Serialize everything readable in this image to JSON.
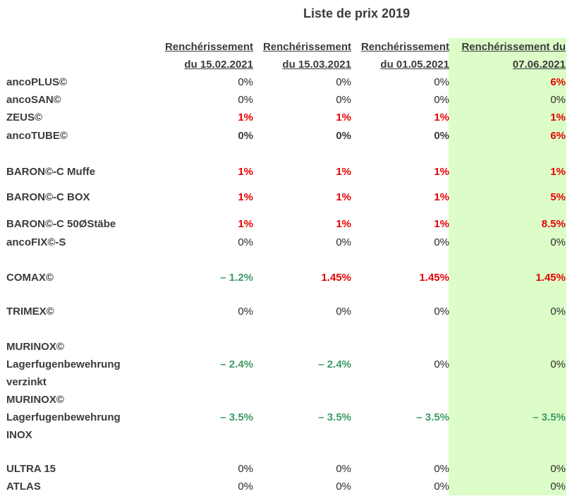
{
  "title": "Liste de prix 2019",
  "columns": [
    {
      "line1": "Renchérissement",
      "line2": "du 15.02.2021"
    },
    {
      "line1": "Renchérissement",
      "line2": "du 15.03.2021"
    },
    {
      "line1": "Renchérissement",
      "line2": "du 01.05.2021"
    },
    {
      "line1": "Renchérissement du",
      "line2": "07.06.2021"
    }
  ],
  "colors": {
    "highlight": "#dcfdc8",
    "increase": "#e60000",
    "decrease": "#3c9a66"
  },
  "rows": [
    {
      "label": [
        "ancoPLUS©"
      ],
      "values": [
        "0%",
        "0%",
        "0%",
        "6%"
      ],
      "styles": [
        "zero",
        "zero",
        "zero",
        "red"
      ]
    },
    {
      "label": [
        "ancoSAN©"
      ],
      "values": [
        "0%",
        "0%",
        "0%",
        "0%"
      ],
      "styles": [
        "zero",
        "zero",
        "zero",
        "zero"
      ]
    },
    {
      "label": [
        "ZEUS©"
      ],
      "values": [
        "1%",
        "1%",
        "1%",
        "1%"
      ],
      "styles": [
        "red",
        "red",
        "red",
        "red"
      ]
    },
    {
      "label": [
        "ancoTUBE©"
      ],
      "values": [
        "0%",
        "0%",
        "0%",
        "6%"
      ],
      "styles": [
        "zerob",
        "zerob",
        "zerob",
        "red"
      ]
    },
    {
      "label": [
        "BARON©-C Muffe"
      ],
      "values": [
        "1%",
        "1%",
        "1%",
        "1%"
      ],
      "styles": [
        "red",
        "red",
        "red",
        "red"
      ]
    },
    {
      "label": [
        "BARON©-C BOX"
      ],
      "values": [
        "1%",
        "1%",
        "1%",
        "5%"
      ],
      "styles": [
        "red",
        "red",
        "red",
        "red"
      ]
    },
    {
      "label": [
        "BARON©-C 50ØStäbe"
      ],
      "values": [
        "1%",
        "1%",
        "1%",
        "8.5%"
      ],
      "styles": [
        "red",
        "red",
        "red",
        "red"
      ]
    },
    {
      "label": [
        "ancoFIX©-S"
      ],
      "values": [
        "0%",
        "0%",
        "0%",
        "0%"
      ],
      "styles": [
        "zero",
        "zero",
        "zero",
        "zero"
      ]
    },
    {
      "label": [
        "COMAX©"
      ],
      "values": [
        "– 1.2%",
        "1.45%",
        "1.45%",
        "1.45%"
      ],
      "styles": [
        "green",
        "red",
        "red",
        "red"
      ]
    },
    {
      "label": [
        "TRIMEX©"
      ],
      "values": [
        "0%",
        "0%",
        "0%",
        "0%"
      ],
      "styles": [
        "zero",
        "zero",
        "zero",
        "zero"
      ]
    },
    {
      "label": [
        "MURINOX©",
        "Lagerfugenbewehrung",
        "verzinkt"
      ],
      "values": [
        "– 2.4%",
        "– 2.4%",
        "0%",
        "0%"
      ],
      "styles": [
        "green",
        "green",
        "zero",
        "zero"
      ]
    },
    {
      "label": [
        "MURINOX©",
        "Lagerfugenbewehrung",
        "INOX"
      ],
      "values": [
        "– 3.5%",
        "– 3.5%",
        "– 3.5%",
        "– 3.5%"
      ],
      "styles": [
        "green",
        "green",
        "green",
        "green"
      ]
    },
    {
      "label": [
        "ULTRA 15"
      ],
      "values": [
        "0%",
        "0%",
        "0%",
        "0%"
      ],
      "styles": [
        "zero",
        "zero",
        "zero",
        "zero"
      ]
    },
    {
      "label": [
        "ATLAS"
      ],
      "values": [
        "0%",
        "0%",
        "0%",
        "0%"
      ],
      "styles": [
        "zero",
        "zero",
        "zero",
        "zero"
      ]
    }
  ]
}
